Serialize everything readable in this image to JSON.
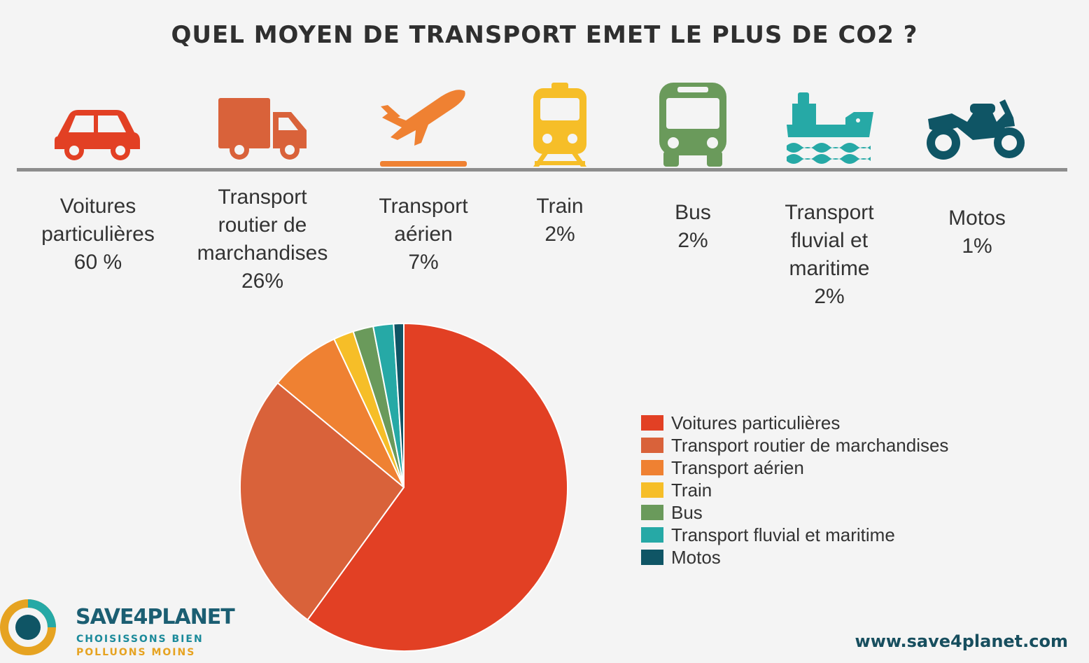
{
  "chart_data": {
    "type": "pie",
    "title": "QUEL MOYEN DE TRANSPORT EMET LE PLUS DE CO2 ?",
    "legend_position": "right",
    "slices": [
      {
        "name": "Voitures particulières",
        "value": 60,
        "label_lines": [
          "Voitures",
          "particulières"
        ],
        "pct_label": "60 %",
        "color": "#e24024",
        "icon": "car-icon"
      },
      {
        "name": "Transport routier de marchandises",
        "value": 26,
        "label_lines": [
          "Transport",
          "routier de",
          "marchandises"
        ],
        "pct_label": "26%",
        "color": "#d9623a",
        "icon": "truck-icon"
      },
      {
        "name": "Transport aérien",
        "value": 7,
        "label_lines": [
          "Transport",
          "aérien"
        ],
        "pct_label": "7%",
        "color": "#ef8132",
        "icon": "plane-icon"
      },
      {
        "name": "Train",
        "value": 2,
        "label_lines": [
          "Train"
        ],
        "pct_label": "2%",
        "color": "#f6be28",
        "icon": "train-icon"
      },
      {
        "name": "Bus",
        "value": 2,
        "label_lines": [
          "Bus"
        ],
        "pct_label": "2%",
        "color": "#6a9a5b",
        "icon": "bus-icon"
      },
      {
        "name": "Transport fluvial et maritime",
        "value": 2,
        "label_lines": [
          "Transport",
          "fluvial et",
          "maritime"
        ],
        "pct_label": "2%",
        "color": "#26a9a6",
        "icon": "ship-icon"
      },
      {
        "name": "Motos",
        "value": 1,
        "label_lines": [
          "Motos"
        ],
        "pct_label": "1%",
        "color": "#0f5565",
        "icon": "motorcycle-icon"
      }
    ]
  },
  "branding": {
    "name": "SAVE4PLANET",
    "tagline1": "CHOISISSONS BIEN",
    "tagline2": "POLLUONS MOINS",
    "website": "www.save4planet.com"
  }
}
